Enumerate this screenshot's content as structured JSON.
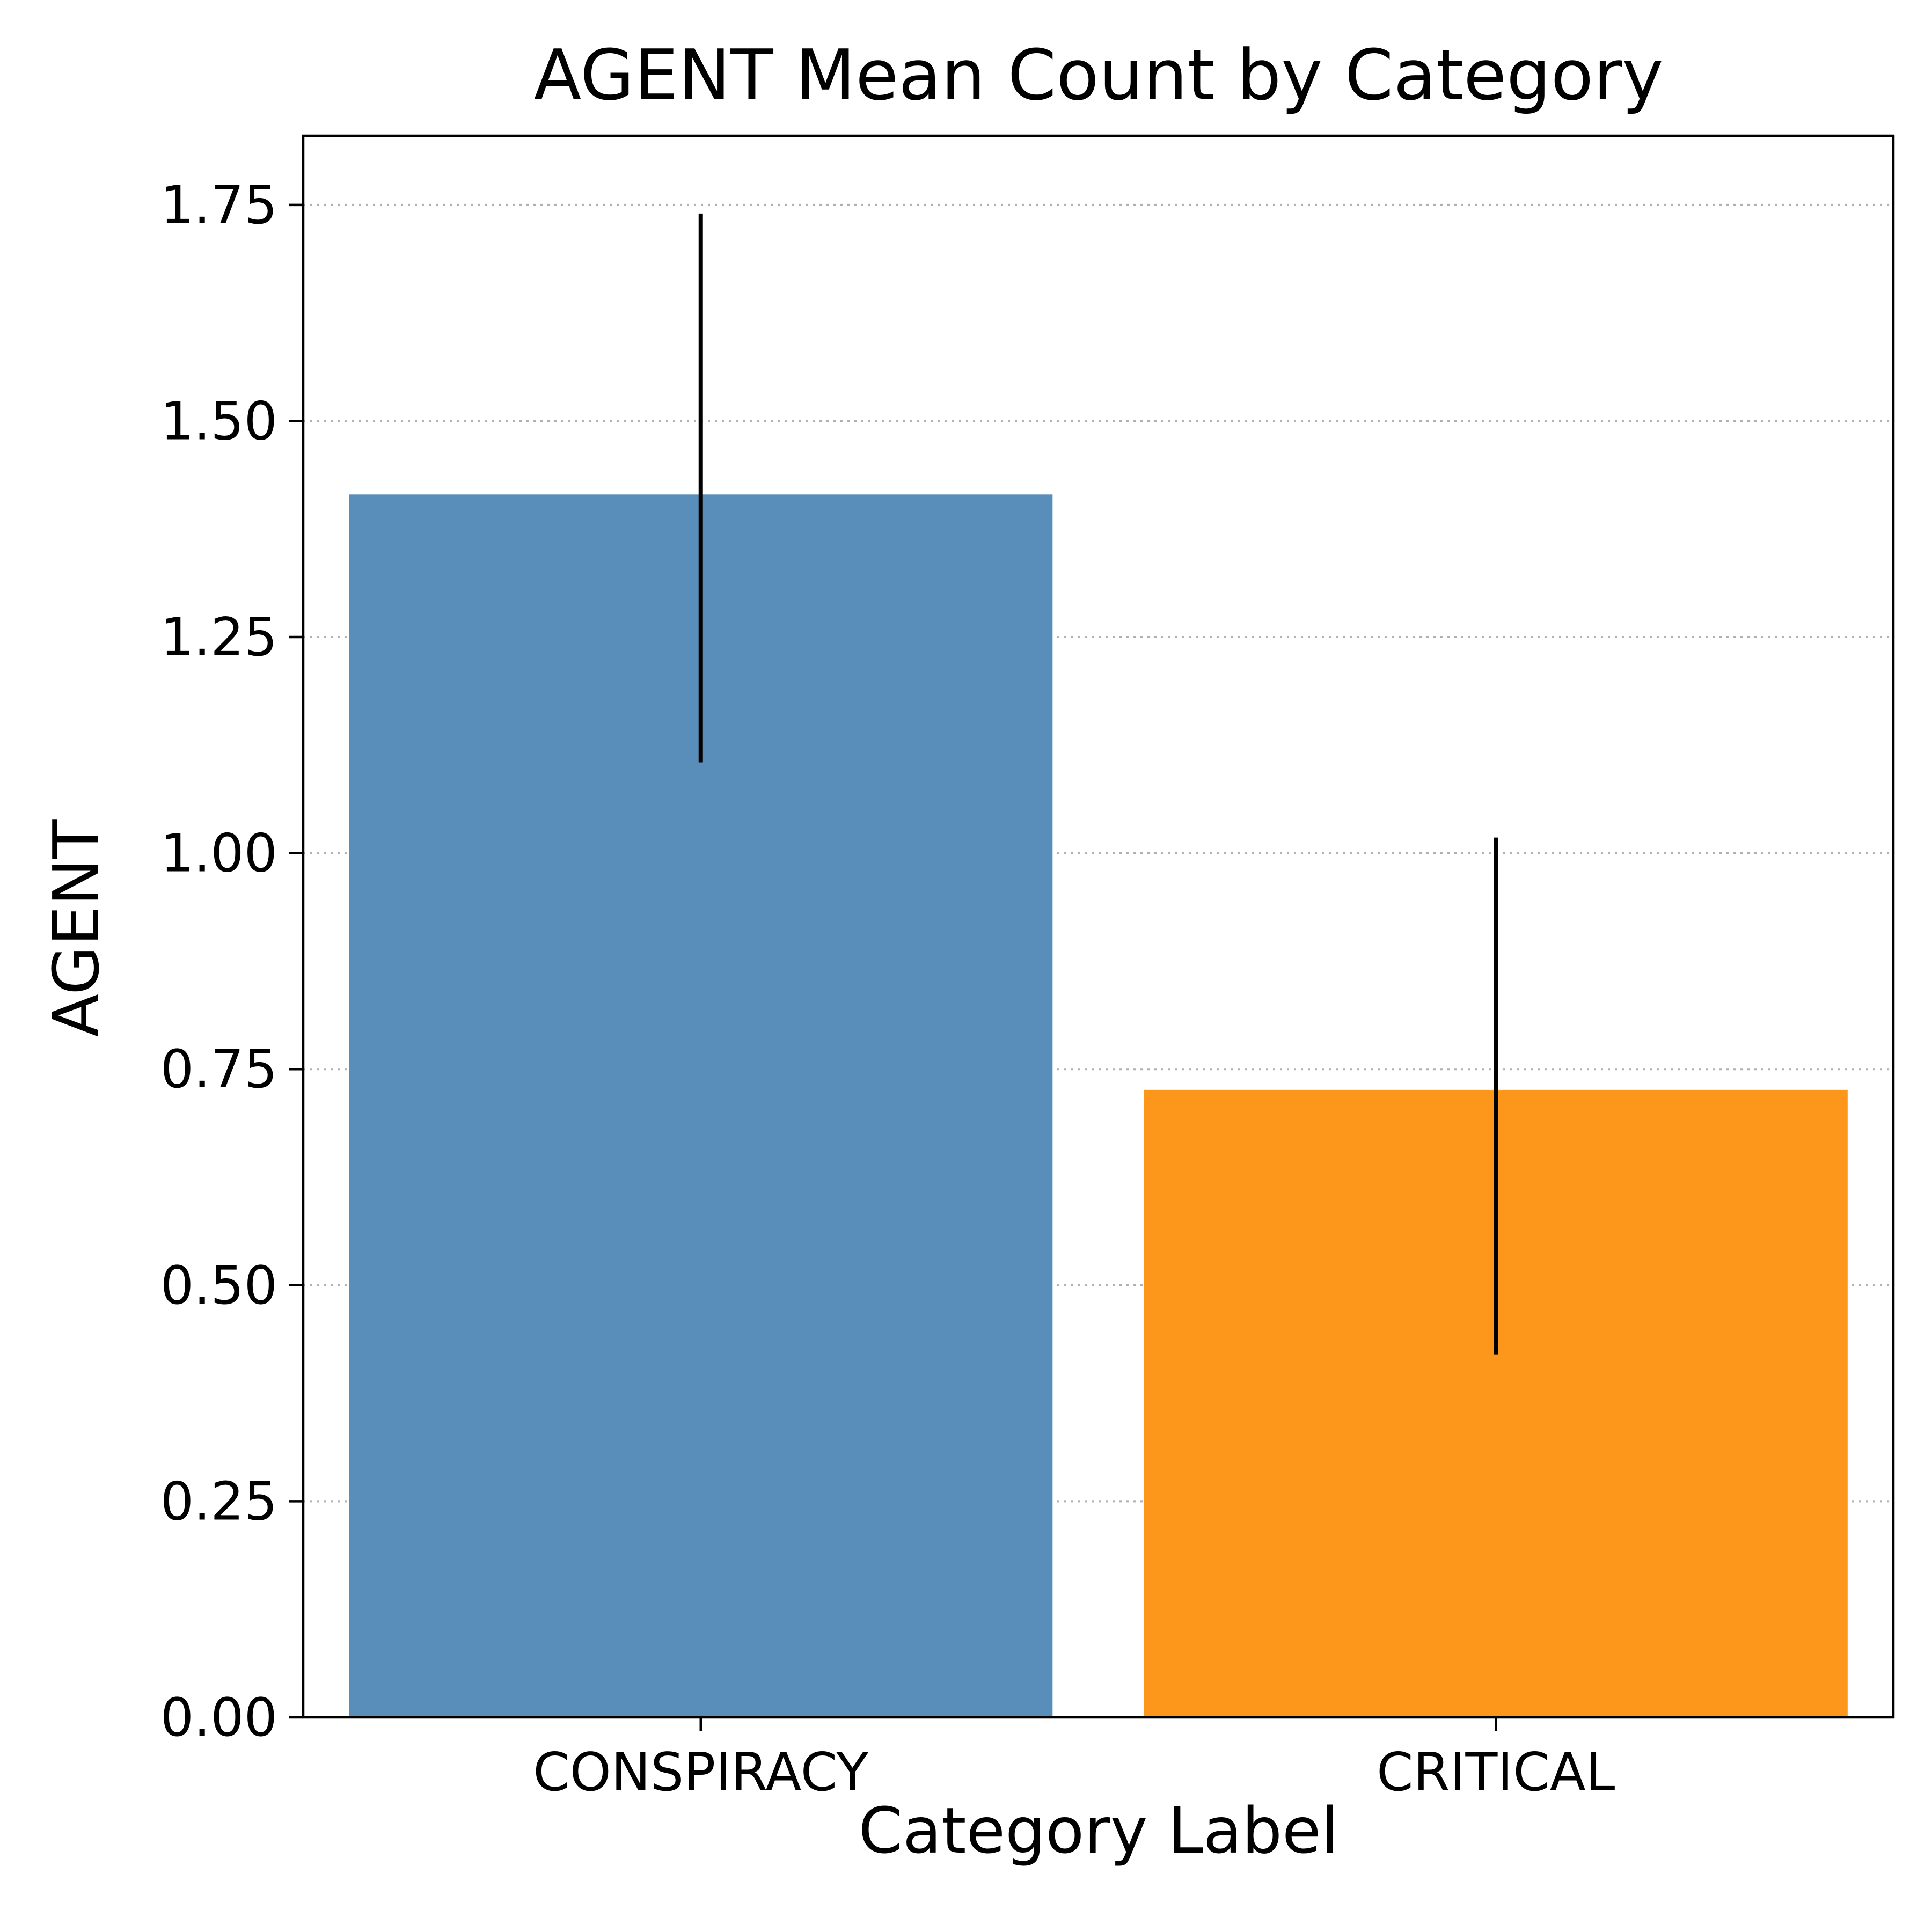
{
  "chart_data": {
    "type": "bar",
    "title": "AGENT Mean Count by Category",
    "xlabel": "Category Label",
    "ylabel": "AGENT",
    "categories": [
      "CONSPIRACY",
      "CRITICAL"
    ],
    "values": [
      1.415,
      0.726
    ],
    "error_low": [
      1.105,
      0.42
    ],
    "error_high": [
      1.74,
      1.018
    ],
    "colors": [
      "#5a8eba",
      "#fd971c"
    ],
    "ylim": [
      0,
      1.83
    ],
    "yticks": [
      0,
      0.25,
      0.5,
      0.75,
      1.0,
      1.25,
      1.5,
      1.75
    ],
    "ytick_labels": [
      "0.00",
      "0.25",
      "0.50",
      "0.75",
      "1.00",
      "1.25",
      "1.50",
      "1.75"
    ],
    "grid": "y-dotted",
    "legend": "none"
  }
}
